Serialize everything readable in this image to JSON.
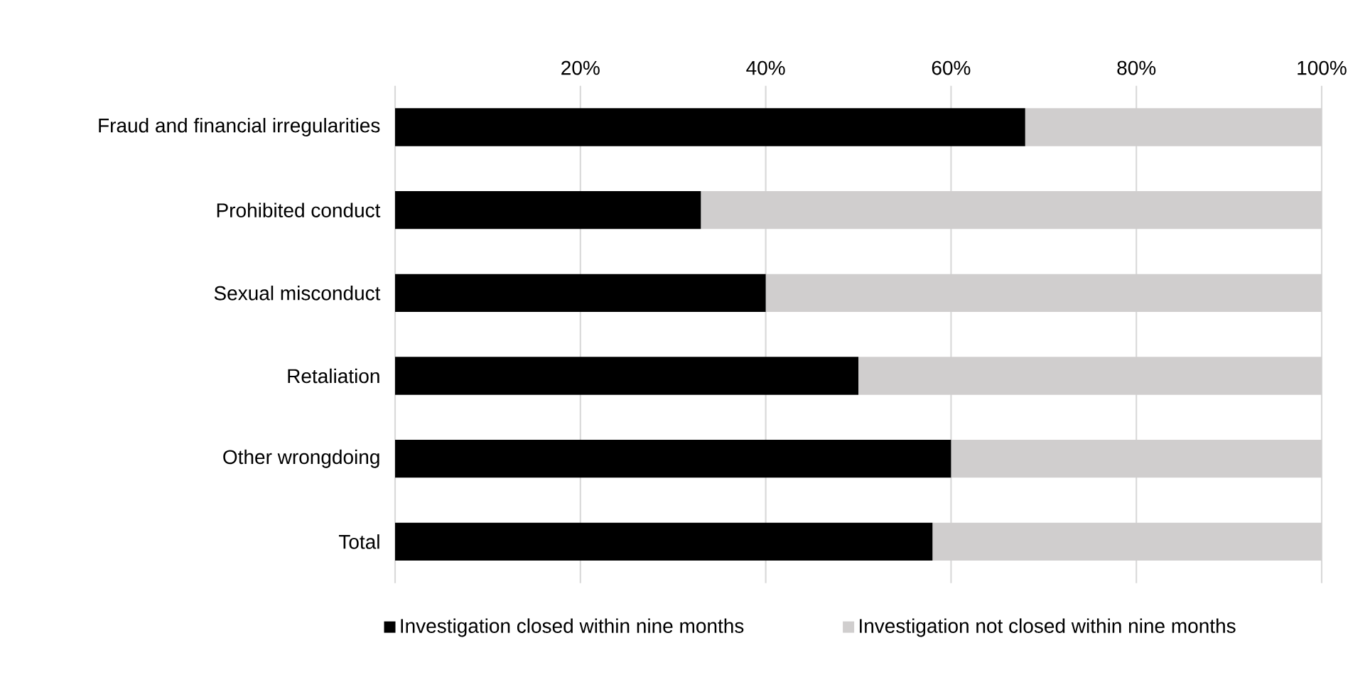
{
  "chart_data": {
    "type": "bar",
    "orientation": "horizontal",
    "stacked": true,
    "categories": [
      "Fraud and financial irregularities",
      "Prohibited conduct",
      "Sexual misconduct",
      "Retaliation",
      "Other wrongdoing",
      "Total"
    ],
    "series": [
      {
        "name": "Investigation closed within nine months",
        "color": "#000000",
        "values": [
          68,
          33,
          40,
          50,
          60,
          58
        ]
      },
      {
        "name": "Investigation not closed within nine months",
        "color": "#d0cece",
        "values": [
          32,
          67,
          60,
          50,
          40,
          42
        ]
      }
    ],
    "xlim": [
      0,
      100
    ],
    "xticks": [
      {
        "value": 0,
        "label": null
      },
      {
        "value": 20,
        "label": "20%"
      },
      {
        "value": 40,
        "label": "40%"
      },
      {
        "value": 60,
        "label": "60%"
      },
      {
        "value": 80,
        "label": "80%"
      },
      {
        "value": 100,
        "label": "100%"
      }
    ],
    "grid": "x",
    "legend": "bottom"
  }
}
